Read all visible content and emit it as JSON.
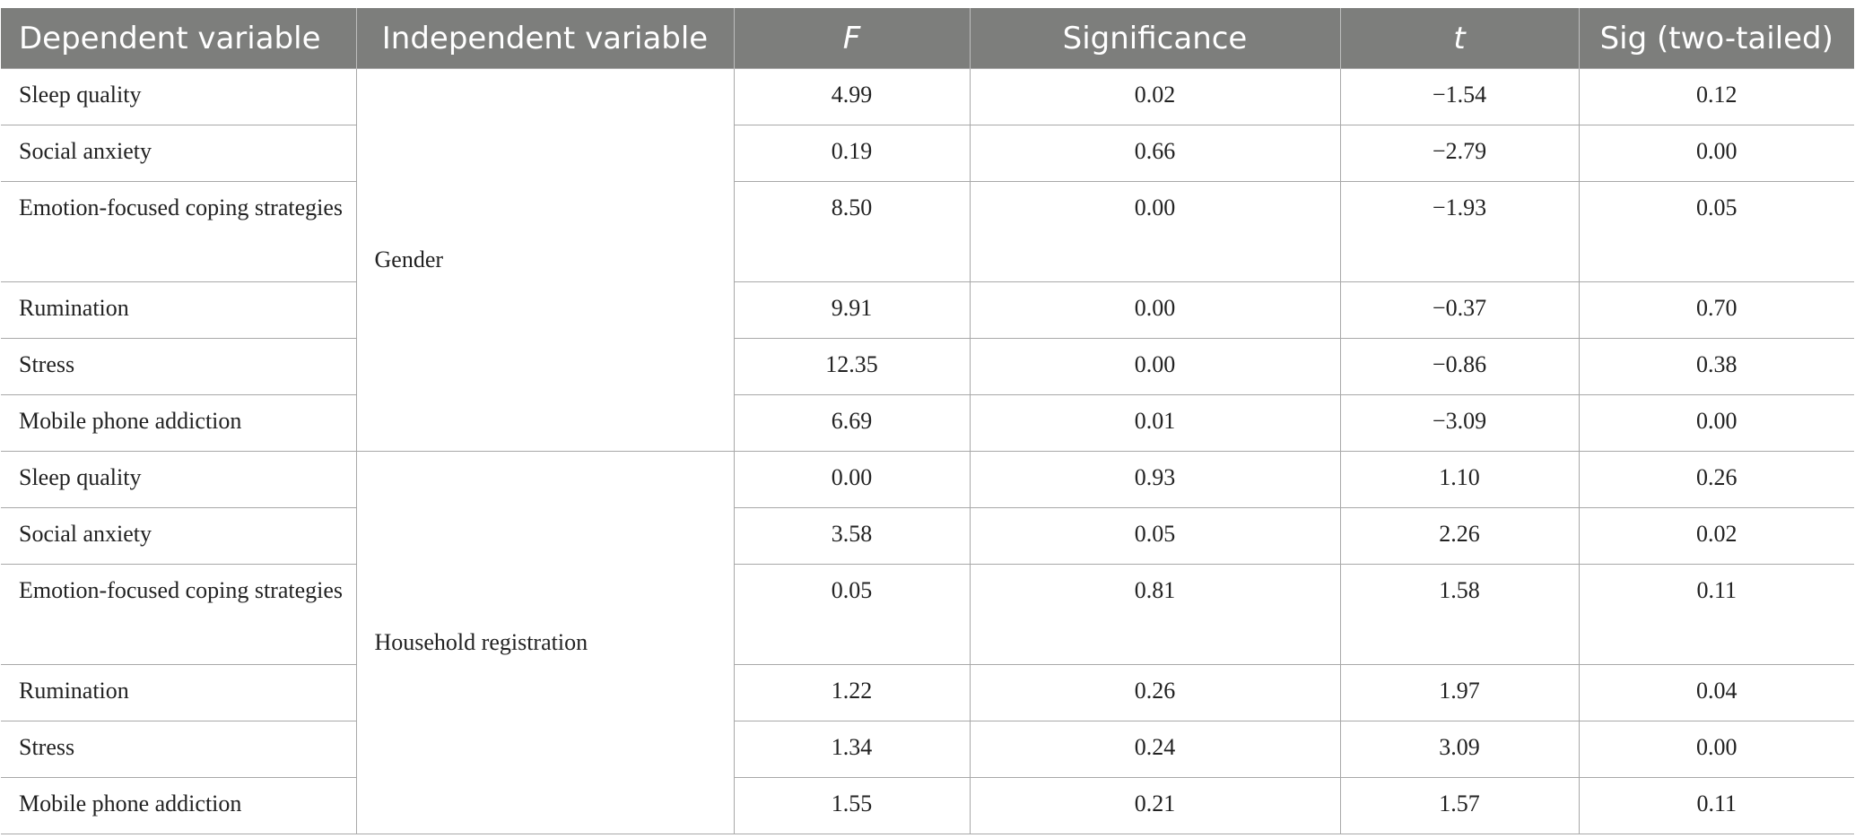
{
  "table": {
    "headers": {
      "dependent": "Dependent variable",
      "independent": "Independent variable",
      "f": "F",
      "significance": "Significance",
      "t": "t",
      "sig_two_tailed": "Sig (two-tailed)"
    },
    "groups": [
      {
        "independent": "Gender",
        "rows": [
          {
            "dependent": "Sleep quality",
            "f": "4.99",
            "significance": "0.02",
            "t": "−1.54",
            "sig": "0.12"
          },
          {
            "dependent": "Social anxiety",
            "f": "0.19",
            "significance": "0.66",
            "t": "−2.79",
            "sig": "0.00"
          },
          {
            "dependent": "Emotion-focused coping strategies",
            "f": "8.50",
            "significance": "0.00",
            "t": "−1.93",
            "sig": "0.05"
          },
          {
            "dependent": "Rumination",
            "f": "9.91",
            "significance": "0.00",
            "t": "−0.37",
            "sig": "0.70"
          },
          {
            "dependent": "Stress",
            "f": "12.35",
            "significance": "0.00",
            "t": "−0.86",
            "sig": "0.38"
          },
          {
            "dependent": "Mobile phone addiction",
            "f": "6.69",
            "significance": "0.01",
            "t": "−3.09",
            "sig": "0.00"
          }
        ]
      },
      {
        "independent": "Household registration",
        "rows": [
          {
            "dependent": "Sleep quality",
            "f": "0.00",
            "significance": "0.93",
            "t": "1.10",
            "sig": "0.26"
          },
          {
            "dependent": "Social anxiety",
            "f": "3.58",
            "significance": "0.05",
            "t": "2.26",
            "sig": "0.02"
          },
          {
            "dependent": "Emotion-focused coping strategies",
            "f": "0.05",
            "significance": "0.81",
            "t": "1.58",
            "sig": "0.11"
          },
          {
            "dependent": "Rumination",
            "f": "1.22",
            "significance": "0.26",
            "t": "1.97",
            "sig": "0.04"
          },
          {
            "dependent": "Stress",
            "f": "1.34",
            "significance": "0.24",
            "t": "3.09",
            "sig": "0.00"
          },
          {
            "dependent": "Mobile phone addiction",
            "f": "1.55",
            "significance": "0.21",
            "t": "1.57",
            "sig": "0.11"
          }
        ]
      }
    ]
  },
  "colors": {
    "header_background": "#7d7e7c",
    "header_text": "#ffffff",
    "grid_lines": "#a8a8a8",
    "body_text": "#222222"
  }
}
